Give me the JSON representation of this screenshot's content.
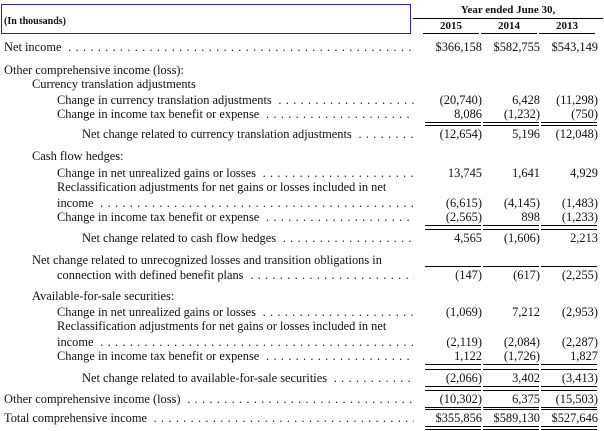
{
  "header": {
    "units_label": "(In thousands)",
    "period_title": "Year ended June 30,",
    "years": [
      "2015",
      "2014",
      "2013"
    ]
  },
  "rows": [
    {
      "label": "Net income",
      "indent": 0,
      "dots": true,
      "values": [
        "$366,158",
        "$582,755",
        "$543,149"
      ]
    },
    {
      "label": "Other comprehensive income (loss):",
      "indent": 0,
      "dots": false,
      "values": []
    },
    {
      "label": "Currency translation adjustments",
      "indent": 1,
      "dots": false,
      "values": []
    },
    {
      "label": "Change in currency translation adjustments",
      "indent": 2,
      "dots": true,
      "values": [
        "(20,740)",
        "6,428",
        "(11,298)"
      ]
    },
    {
      "label": "Change in income tax benefit or expense",
      "indent": 2,
      "dots": true,
      "values": [
        "8,086",
        "(1,232)",
        "(750)"
      ]
    },
    {
      "label": "Net change related to currency translation adjustments",
      "indent": 3,
      "dots": true,
      "values": [
        "(12,654)",
        "5,196",
        "(12,048)"
      ]
    },
    {
      "label": "Cash flow hedges:",
      "indent": 1,
      "dots": false,
      "values": []
    },
    {
      "label": "Change in net unrealized gains or losses",
      "indent": 2,
      "dots": true,
      "values": [
        "13,745",
        "1,641",
        "4,929"
      ]
    },
    {
      "label": "Reclassification adjustments for net gains or losses included in net",
      "indent": 2,
      "dots": false,
      "values": []
    },
    {
      "label": "income",
      "indent": 2,
      "dots": true,
      "values": [
        "(6,615)",
        "(4,145)",
        "(1,483)"
      ]
    },
    {
      "label": "Change in income tax benefit or expense",
      "indent": 2,
      "dots": true,
      "values": [
        "(2,565)",
        "898",
        "(1,233)"
      ]
    },
    {
      "label": "Net change related to cash flow hedges",
      "indent": 3,
      "dots": true,
      "values": [
        "4,565",
        "(1,606)",
        "2,213"
      ]
    },
    {
      "label": "Net change related to unrecognized losses and transition obligations in",
      "indent": 1,
      "dots": false,
      "values": []
    },
    {
      "label": "connection with defined benefit plans",
      "indent": 2,
      "dots": true,
      "values": [
        "(147)",
        "(617)",
        "(2,255)"
      ]
    },
    {
      "label": "Available-for-sale securities:",
      "indent": 1,
      "dots": false,
      "values": []
    },
    {
      "label": "Change in net unrealized gains or losses",
      "indent": 2,
      "dots": true,
      "values": [
        "(1,069)",
        "7,212",
        "(2,953)"
      ]
    },
    {
      "label": "Reclassification adjustments for net gains or losses included in net",
      "indent": 2,
      "dots": false,
      "values": []
    },
    {
      "label": "income",
      "indent": 2,
      "dots": true,
      "values": [
        "(2,119)",
        "(2,084)",
        "(2,287)"
      ]
    },
    {
      "label": "Change in income tax benefit or expense",
      "indent": 2,
      "dots": true,
      "values": [
        "1,122",
        "(1,726)",
        "1,827"
      ]
    },
    {
      "label": "Net change related to available-for-sale securities",
      "indent": 3,
      "dots": true,
      "values": [
        "(2,066)",
        "3,402",
        "(3,413)"
      ]
    },
    {
      "label": "Other comprehensive income (loss)",
      "indent": 0,
      "dots": true,
      "values": [
        "(10,302)",
        "6,375",
        "(15,503)"
      ]
    },
    {
      "label": "Total comprehensive income",
      "indent": 0,
      "dots": true,
      "values": [
        "$355,856",
        "$589,130",
        "$527,646"
      ]
    }
  ]
}
